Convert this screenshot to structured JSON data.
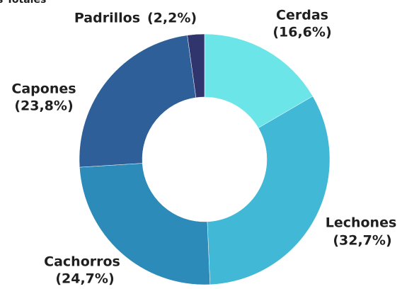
{
  "chart_data": {
    "type": "pie",
    "title": "s Totales",
    "categories": [
      "Cerdas",
      "Lechones",
      "Cachorros",
      "Capones",
      "Padrillos"
    ],
    "values": [
      16.6,
      32.7,
      24.7,
      23.8,
      2.2
    ],
    "value_labels": [
      "(16,6%)",
      "(32,7%)",
      "(24,7%)",
      "(23,8%)",
      "(2,2%)"
    ],
    "colors": [
      "#6ce5e8",
      "#41b8d5",
      "#2d8bba",
      "#2f5f98",
      "#31356e"
    ],
    "donut": true
  }
}
